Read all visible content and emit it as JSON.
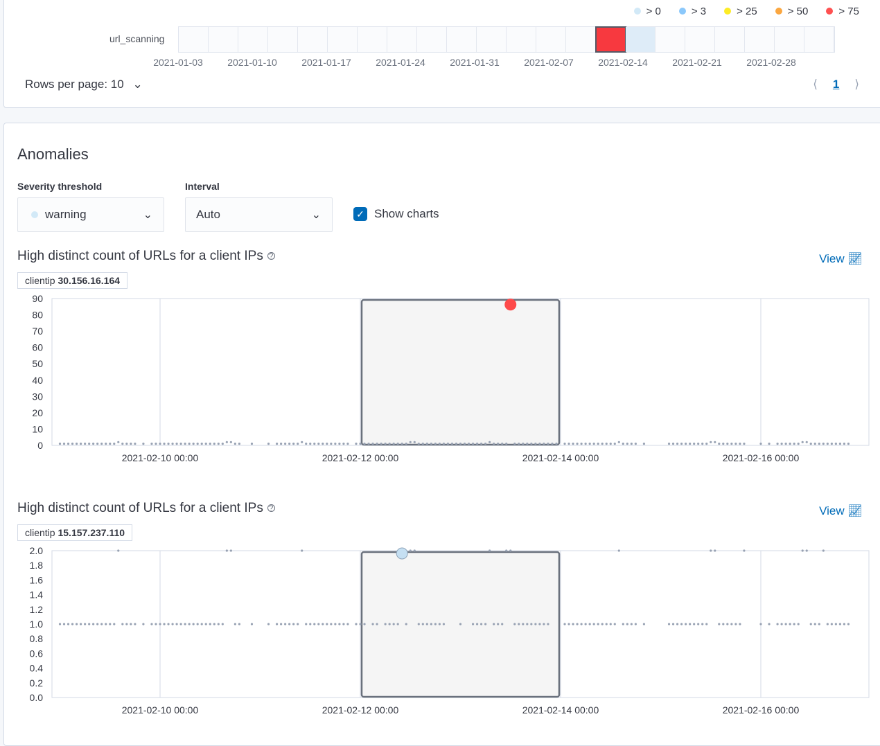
{
  "swimlane": {
    "legend": [
      {
        "label": "> 0",
        "color": "#d2e9f7"
      },
      {
        "label": "> 3",
        "color": "#8bc8fb"
      },
      {
        "label": "> 25",
        "color": "#fdec25"
      },
      {
        "label": "> 50",
        "color": "#fba740"
      },
      {
        "label": "> 75",
        "color": "#fe5050"
      }
    ],
    "lane_label": "url_scanning",
    "cells": 22,
    "scored_cells": [
      {
        "index": 14,
        "color": "#f7393f",
        "selected": true
      },
      {
        "index": 15,
        "color": "#deecf8",
        "selected": false
      }
    ],
    "ticks": [
      "2021-01-03",
      "2021-01-10",
      "2021-01-17",
      "2021-01-24",
      "2021-01-31",
      "2021-02-07",
      "2021-02-14",
      "2021-02-21",
      "2021-02-28"
    ]
  },
  "pagination": {
    "rows_per_page": "Rows per page: 10",
    "page": "1"
  },
  "anomalies": {
    "title": "Anomalies",
    "severity_label": "Severity threshold",
    "severity_value": "warning",
    "severity_color": "#d2e9f7",
    "interval_label": "Interval",
    "interval_value": "Auto",
    "show_charts_label": "Show charts",
    "show_charts": true
  },
  "chart_data": [
    {
      "type": "scatter",
      "title": "High distinct count of URLs for a client IPs",
      "view_label": "View",
      "entity_label": "clientip",
      "entity_value": "30.156.16.164",
      "x_start": "2021-02-09 00:00",
      "x_interval": "1h",
      "x_ticks": [
        "2021-02-10 00:00",
        "2021-02-12 00:00",
        "2021-02-14 00:00",
        "2021-02-16 00:00"
      ],
      "ylim": [
        0,
        90
      ],
      "y_ticks": [
        0,
        10,
        20,
        30,
        40,
        50,
        60,
        70,
        80,
        90
      ],
      "selected_range": [
        "2021-02-12 00:00",
        "2021-02-14 00:00"
      ],
      "anomaly": {
        "x": "2021-02-13 12:00",
        "value": 88,
        "color": "#fe4a4a"
      },
      "values": [
        1,
        1,
        1,
        1,
        1,
        1,
        1,
        1,
        1,
        1,
        1,
        1,
        1,
        1,
        2,
        1,
        1,
        1,
        1,
        null,
        1,
        null,
        1,
        1,
        1,
        1,
        1,
        1,
        1,
        1,
        1,
        1,
        1,
        1,
        1,
        1,
        1,
        1,
        1,
        1,
        2,
        2,
        1,
        1,
        null,
        null,
        1,
        null,
        null,
        null,
        1,
        null,
        1,
        1,
        1,
        1,
        1,
        1,
        2,
        1,
        1,
        1,
        1,
        1,
        1,
        1,
        1,
        1,
        1,
        1,
        null,
        1,
        1,
        1,
        1,
        1,
        1,
        1,
        1,
        1,
        1,
        1,
        1,
        1,
        2,
        2,
        1,
        1,
        1,
        1,
        1,
        1,
        1,
        1,
        1,
        1,
        1,
        1,
        1,
        1,
        1,
        1,
        1,
        2,
        1,
        1,
        1,
        1,
        88,
        1,
        1,
        1,
        1,
        1,
        1,
        1,
        1,
        1,
        1,
        1,
        null,
        1,
        1,
        1,
        1,
        1,
        1,
        1,
        1,
        1,
        1,
        1,
        1,
        1,
        2,
        1,
        1,
        1,
        1,
        null,
        1,
        null,
        null,
        null,
        null,
        null,
        1,
        1,
        1,
        1,
        1,
        1,
        1,
        1,
        1,
        1,
        2,
        2,
        1,
        1,
        1,
        1,
        1,
        1,
        1,
        null,
        null,
        null,
        1,
        null,
        1,
        null,
        1,
        1,
        1,
        1,
        1,
        1,
        2,
        2,
        1,
        1,
        1,
        1,
        1,
        1,
        1,
        1,
        1,
        1
      ]
    },
    {
      "type": "scatter",
      "title": "High distinct count of URLs for a client IPs",
      "view_label": "View",
      "entity_label": "clientip",
      "entity_value": "15.157.237.110",
      "x_start": "2021-02-09 00:00",
      "x_interval": "1h",
      "x_ticks": [
        "2021-02-10 00:00",
        "2021-02-12 00:00",
        "2021-02-14 00:00",
        "2021-02-16 00:00"
      ],
      "ylim": [
        0,
        2
      ],
      "y_ticks": [
        "0.0",
        "0.2",
        "0.4",
        "0.6",
        "0.8",
        "1.0",
        "1.2",
        "1.4",
        "1.6",
        "1.8",
        "2.0"
      ],
      "selected_range": [
        "2021-02-12 00:00",
        "2021-02-14 00:00"
      ],
      "anomaly": {
        "x": "2021-02-12 10:00",
        "value": 2,
        "color": "#c5dff2"
      },
      "values": [
        1,
        1,
        1,
        1,
        1,
        1,
        1,
        1,
        1,
        1,
        1,
        1,
        1,
        1,
        2,
        1,
        1,
        1,
        1,
        null,
        1,
        null,
        1,
        1,
        1,
        1,
        1,
        1,
        1,
        1,
        1,
        1,
        1,
        1,
        1,
        1,
        1,
        1,
        1,
        1,
        2,
        2,
        1,
        1,
        null,
        null,
        1,
        null,
        null,
        null,
        1,
        null,
        1,
        1,
        1,
        1,
        1,
        1,
        2,
        1,
        1,
        1,
        1,
        1,
        1,
        1,
        1,
        1,
        1,
        1,
        null,
        1,
        1,
        1,
        null,
        1,
        1,
        null,
        1,
        1,
        1,
        1,
        2,
        1,
        2,
        2,
        1,
        1,
        1,
        1,
        1,
        1,
        1,
        null,
        null,
        null,
        1,
        null,
        null,
        1,
        1,
        1,
        1,
        2,
        1,
        1,
        1,
        2,
        2,
        1,
        1,
        1,
        1,
        1,
        1,
        1,
        1,
        1,
        null,
        null,
        null,
        1,
        1,
        1,
        1,
        1,
        1,
        1,
        1,
        1,
        1,
        1,
        1,
        1,
        2,
        1,
        1,
        1,
        1,
        null,
        1,
        null,
        null,
        null,
        null,
        null,
        1,
        1,
        1,
        1,
        1,
        1,
        1,
        1,
        1,
        1,
        2,
        2,
        1,
        1,
        1,
        1,
        1,
        1,
        2,
        null,
        null,
        null,
        1,
        null,
        1,
        null,
        1,
        1,
        1,
        1,
        1,
        1,
        2,
        2,
        1,
        1,
        1,
        2,
        1,
        1,
        1,
        1,
        1,
        1
      ]
    }
  ]
}
